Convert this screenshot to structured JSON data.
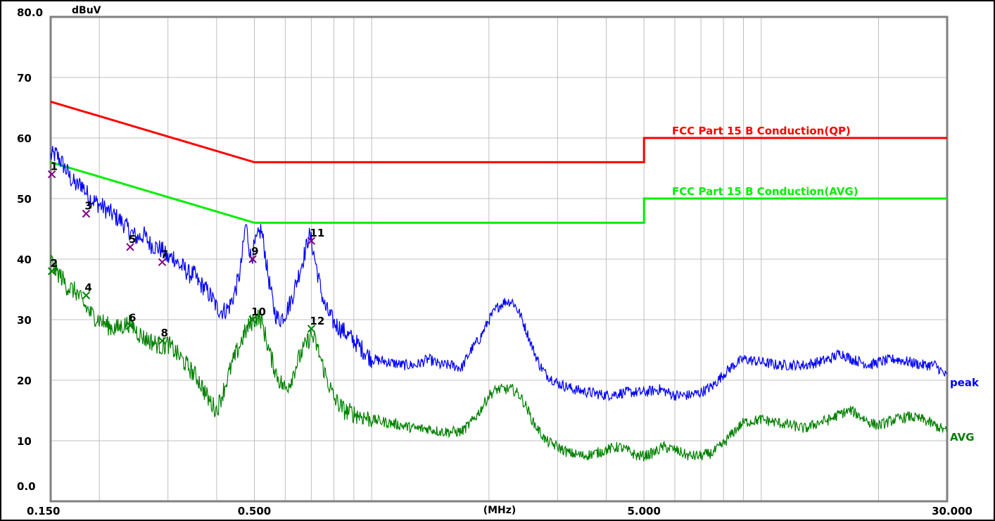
{
  "chart_data": {
    "type": "line",
    "title": "",
    "ylabel": "dBuV",
    "xlabel": "(MHz)",
    "x_scale": "log",
    "xlim": [
      0.15,
      30.0
    ],
    "ylim": [
      0,
      80
    ],
    "grid": true,
    "x_tick_labels": [
      {
        "x": 0.15,
        "label": "0.150"
      },
      {
        "x": 0.5,
        "label": "0.500"
      },
      {
        "x": 5.0,
        "label": "5.000"
      },
      {
        "x": 30.0,
        "label": "30.000"
      }
    ],
    "y_tick_labels": [
      {
        "y": 80,
        "label": "80.0"
      },
      {
        "y": 70,
        "label": "70"
      },
      {
        "y": 60,
        "label": "60"
      },
      {
        "y": 50,
        "label": "50"
      },
      {
        "y": 40,
        "label": "40"
      },
      {
        "y": 30,
        "label": "30"
      },
      {
        "y": 20,
        "label": "20"
      },
      {
        "y": 10,
        "label": "10"
      },
      {
        "y": 0,
        "label": "0.0"
      }
    ],
    "limits": [
      {
        "name": "FCC Part 15 B Conduction(QP)",
        "color": "#ff0000",
        "points": [
          [
            0.15,
            66
          ],
          [
            0.5,
            56
          ],
          [
            5.0,
            56
          ],
          [
            5.0,
            60
          ],
          [
            30.0,
            60
          ]
        ]
      },
      {
        "name": "FCC Part 15 B Conduction(AVG)",
        "color": "#00ee00",
        "points": [
          [
            0.15,
            56
          ],
          [
            0.5,
            46
          ],
          [
            5.0,
            46
          ],
          [
            5.0,
            50
          ],
          [
            30.0,
            50
          ]
        ]
      }
    ],
    "series": [
      {
        "name": "peak",
        "color": "#0000ff",
        "points": [
          [
            0.15,
            57
          ],
          [
            0.155,
            57.3
          ],
          [
            0.16,
            56
          ],
          [
            0.165,
            54.5
          ],
          [
            0.17,
            53
          ],
          [
            0.175,
            52
          ],
          [
            0.18,
            52.5
          ],
          [
            0.185,
            51
          ],
          [
            0.19,
            50
          ],
          [
            0.2,
            49
          ],
          [
            0.21,
            48
          ],
          [
            0.22,
            47
          ],
          [
            0.23,
            46
          ],
          [
            0.24,
            44.5
          ],
          [
            0.25,
            43.5
          ],
          [
            0.26,
            44
          ],
          [
            0.27,
            42.5
          ],
          [
            0.28,
            42
          ],
          [
            0.29,
            41.5
          ],
          [
            0.3,
            40
          ],
          [
            0.31,
            40.5
          ],
          [
            0.32,
            39
          ],
          [
            0.33,
            38.5
          ],
          [
            0.34,
            37.5
          ],
          [
            0.35,
            37.5
          ],
          [
            0.36,
            36
          ],
          [
            0.37,
            35.5
          ],
          [
            0.38,
            34.5
          ],
          [
            0.39,
            33.5
          ],
          [
            0.4,
            32
          ],
          [
            0.41,
            31.5
          ],
          [
            0.42,
            31.5
          ],
          [
            0.43,
            32
          ],
          [
            0.44,
            33.5
          ],
          [
            0.45,
            35.5
          ],
          [
            0.46,
            38
          ],
          [
            0.47,
            43
          ],
          [
            0.475,
            46
          ],
          [
            0.48,
            44
          ],
          [
            0.49,
            40
          ],
          [
            0.5,
            42
          ],
          [
            0.51,
            43.5
          ],
          [
            0.52,
            45
          ],
          [
            0.53,
            42
          ],
          [
            0.54,
            38
          ],
          [
            0.55,
            35
          ],
          [
            0.56,
            32
          ],
          [
            0.57,
            30.5
          ],
          [
            0.58,
            30
          ],
          [
            0.6,
            31
          ],
          [
            0.62,
            33
          ],
          [
            0.64,
            36
          ],
          [
            0.66,
            39
          ],
          [
            0.68,
            42
          ],
          [
            0.69,
            44
          ],
          [
            0.7,
            43
          ],
          [
            0.72,
            39
          ],
          [
            0.74,
            35
          ],
          [
            0.76,
            32
          ],
          [
            0.8,
            29.5
          ],
          [
            0.85,
            28
          ],
          [
            0.9,
            26.5
          ],
          [
            0.95,
            25
          ],
          [
            1.0,
            23.5
          ],
          [
            1.1,
            23
          ],
          [
            1.2,
            22.5
          ],
          [
            1.3,
            22.5
          ],
          [
            1.4,
            23.5
          ],
          [
            1.5,
            22.5
          ],
          [
            1.6,
            22.5
          ],
          [
            1.7,
            22
          ],
          [
            1.8,
            25
          ],
          [
            1.9,
            27
          ],
          [
            2.0,
            30
          ],
          [
            2.1,
            32
          ],
          [
            2.2,
            33
          ],
          [
            2.3,
            33
          ],
          [
            2.4,
            31
          ],
          [
            2.5,
            28
          ],
          [
            2.6,
            25
          ],
          [
            2.7,
            22.5
          ],
          [
            2.8,
            21
          ],
          [
            3.0,
            19.5
          ],
          [
            3.3,
            18.5
          ],
          [
            3.6,
            18
          ],
          [
            4.0,
            17.5
          ],
          [
            4.5,
            18
          ],
          [
            5.0,
            18
          ],
          [
            5.5,
            18.5
          ],
          [
            6.0,
            17.5
          ],
          [
            6.5,
            17.5
          ],
          [
            7.0,
            18
          ],
          [
            7.5,
            19
          ],
          [
            8.0,
            21
          ],
          [
            8.5,
            22.5
          ],
          [
            9.0,
            23.5
          ],
          [
            10.0,
            23
          ],
          [
            11.0,
            22.5
          ],
          [
            12.0,
            22.5
          ],
          [
            13.0,
            22.5
          ],
          [
            14.0,
            23
          ],
          [
            15.0,
            23.5
          ],
          [
            16.0,
            24.5
          ],
          [
            17.0,
            23.5
          ],
          [
            18.0,
            23
          ],
          [
            19.0,
            22.5
          ],
          [
            20.0,
            23
          ],
          [
            22.0,
            23.5
          ],
          [
            24.0,
            23
          ],
          [
            26.0,
            22.5
          ],
          [
            28.0,
            22.5
          ],
          [
            30.0,
            20.5
          ]
        ]
      },
      {
        "name": "AVG",
        "color": "#008000",
        "points": [
          [
            0.15,
            40
          ],
          [
            0.155,
            38
          ],
          [
            0.16,
            37
          ],
          [
            0.165,
            35.5
          ],
          [
            0.17,
            35
          ],
          [
            0.175,
            34.5
          ],
          [
            0.18,
            33
          ],
          [
            0.19,
            31
          ],
          [
            0.2,
            30
          ],
          [
            0.21,
            29
          ],
          [
            0.22,
            28.5
          ],
          [
            0.23,
            29
          ],
          [
            0.24,
            29.5
          ],
          [
            0.25,
            28
          ],
          [
            0.26,
            27
          ],
          [
            0.27,
            26.5
          ],
          [
            0.28,
            26
          ],
          [
            0.29,
            25.5
          ],
          [
            0.3,
            26
          ],
          [
            0.31,
            25
          ],
          [
            0.32,
            24
          ],
          [
            0.33,
            23
          ],
          [
            0.34,
            22
          ],
          [
            0.35,
            21
          ],
          [
            0.36,
            20
          ],
          [
            0.37,
            18.5
          ],
          [
            0.38,
            17
          ],
          [
            0.39,
            16
          ],
          [
            0.4,
            15
          ],
          [
            0.41,
            17
          ],
          [
            0.42,
            19
          ],
          [
            0.43,
            21
          ],
          [
            0.44,
            23
          ],
          [
            0.45,
            24.5
          ],
          [
            0.46,
            26
          ],
          [
            0.47,
            27.5
          ],
          [
            0.48,
            28.5
          ],
          [
            0.49,
            29.5
          ],
          [
            0.5,
            30
          ],
          [
            0.51,
            30.5
          ],
          [
            0.52,
            30
          ],
          [
            0.53,
            28
          ],
          [
            0.54,
            26
          ],
          [
            0.55,
            24
          ],
          [
            0.56,
            22.5
          ],
          [
            0.57,
            21
          ],
          [
            0.58,
            20
          ],
          [
            0.6,
            18.5
          ],
          [
            0.62,
            20
          ],
          [
            0.64,
            22.5
          ],
          [
            0.66,
            24.5
          ],
          [
            0.68,
            26
          ],
          [
            0.7,
            27.5
          ],
          [
            0.72,
            26
          ],
          [
            0.74,
            23.5
          ],
          [
            0.76,
            21
          ],
          [
            0.78,
            19
          ],
          [
            0.8,
            17
          ],
          [
            0.85,
            15
          ],
          [
            0.9,
            14.5
          ],
          [
            0.95,
            14
          ],
          [
            1.0,
            13.5
          ],
          [
            1.1,
            13
          ],
          [
            1.2,
            12.5
          ],
          [
            1.3,
            12
          ],
          [
            1.4,
            12
          ],
          [
            1.5,
            11.5
          ],
          [
            1.6,
            11.5
          ],
          [
            1.7,
            11.5
          ],
          [
            1.8,
            13
          ],
          [
            1.9,
            15
          ],
          [
            2.0,
            17.5
          ],
          [
            2.1,
            18.5
          ],
          [
            2.2,
            18.5
          ],
          [
            2.3,
            18.5
          ],
          [
            2.4,
            17.5
          ],
          [
            2.5,
            15.5
          ],
          [
            2.6,
            13
          ],
          [
            2.7,
            11.5
          ],
          [
            2.8,
            10
          ],
          [
            3.0,
            9
          ],
          [
            3.2,
            8
          ],
          [
            3.5,
            7.5
          ],
          [
            3.8,
            8
          ],
          [
            4.0,
            8.5
          ],
          [
            4.3,
            9
          ],
          [
            4.5,
            8.5
          ],
          [
            4.8,
            7.5
          ],
          [
            5.0,
            7.5
          ],
          [
            5.3,
            8
          ],
          [
            5.6,
            9
          ],
          [
            6.0,
            8.5
          ],
          [
            6.5,
            7.5
          ],
          [
            7.0,
            7.5
          ],
          [
            7.5,
            8
          ],
          [
            8.0,
            9.5
          ],
          [
            8.5,
            11.5
          ],
          [
            9.0,
            13
          ],
          [
            10.0,
            13.5
          ],
          [
            11.0,
            13
          ],
          [
            12.0,
            12.5
          ],
          [
            13.0,
            12
          ],
          [
            14.0,
            13
          ],
          [
            15.0,
            13.5
          ],
          [
            16.0,
            14.5
          ],
          [
            17.0,
            15
          ],
          [
            18.0,
            14
          ],
          [
            19.0,
            13
          ],
          [
            20.0,
            12.5
          ],
          [
            22.0,
            13.5
          ],
          [
            24.0,
            14
          ],
          [
            26.0,
            13.5
          ],
          [
            28.0,
            12.5
          ],
          [
            30.0,
            11.5
          ]
        ]
      }
    ],
    "markers": [
      {
        "label": "1",
        "x": 0.151,
        "y": 54,
        "color": "#800080"
      },
      {
        "label": "2",
        "x": 0.151,
        "y": 38,
        "color": "#008000"
      },
      {
        "label": "3",
        "x": 0.185,
        "y": 47.5,
        "color": "#800080"
      },
      {
        "label": "4",
        "x": 0.185,
        "y": 34,
        "color": "#008000"
      },
      {
        "label": "5",
        "x": 0.24,
        "y": 42,
        "color": "#800080"
      },
      {
        "label": "6",
        "x": 0.24,
        "y": 29,
        "color": "#008000"
      },
      {
        "label": "7",
        "x": 0.29,
        "y": 39.5,
        "color": "#800080"
      },
      {
        "label": "8",
        "x": 0.29,
        "y": 26.5,
        "color": "#008000"
      },
      {
        "label": "9",
        "x": 0.495,
        "y": 40,
        "color": "#800080"
      },
      {
        "label": "10",
        "x": 0.495,
        "y": 30,
        "color": "#008000"
      },
      {
        "label": "11",
        "x": 0.7,
        "y": 43,
        "color": "#800080"
      },
      {
        "label": "12",
        "x": 0.7,
        "y": 28.5,
        "color": "#008000"
      }
    ]
  }
}
